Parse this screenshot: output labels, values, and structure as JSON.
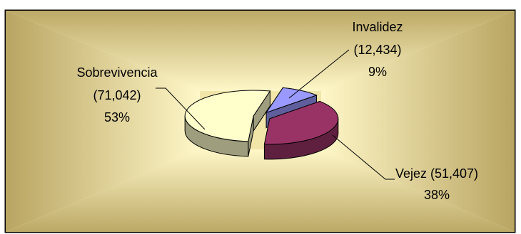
{
  "chart_data": {
    "type": "pie",
    "style": "3d-exploded",
    "categories": [
      "Invalidez",
      "Vejez",
      "Sobrevivencia"
    ],
    "values": [
      12434,
      51407,
      71042
    ],
    "percent_labels": [
      "9%",
      "38%",
      "53%"
    ],
    "slices": [
      {
        "category": "Invalidez",
        "value": 12434,
        "value_text": "(12,434)",
        "percent": "9%",
        "label_line1": "Invalidez",
        "label_line2": "(12,434)",
        "label_line3": "9%",
        "color": "#9999ff"
      },
      {
        "category": "Vejez",
        "value": 51407,
        "value_text": "(51,407)",
        "percent": "38%",
        "label_line1": "Vejez (51,407)",
        "label_line2": "38%",
        "label_line3": "",
        "color": "#993366"
      },
      {
        "category": "Sobrevivencia",
        "value": 71042,
        "value_text": "(71,042)",
        "percent": "53%",
        "label_line1": "Sobrevivencia",
        "label_line2": "(71,042)",
        "label_line3": "53%",
        "color": "#ffffcc"
      }
    ],
    "title": "",
    "legend": "none",
    "background": "beveled gold gradient"
  }
}
